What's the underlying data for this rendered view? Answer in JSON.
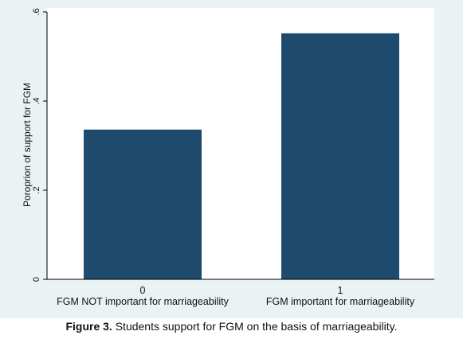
{
  "colors": {
    "bar": "#1e4a6e",
    "plot_background": "#ffffff",
    "outer_background": "#eaf2f3",
    "axis": "#000000"
  },
  "caption": {
    "label": "Figure 3.",
    "text": " Students support for FGM on the basis of marriageability."
  },
  "chart_data": {
    "type": "bar",
    "categories": [
      "0",
      "1"
    ],
    "category_descriptions": [
      "FGM NOT important for marriageability",
      "FGM important for marriageability"
    ],
    "values": [
      0.336,
      0.552
    ],
    "ylabel": "Poroprion  of support for FGM",
    "xlabel": "",
    "ylim": [
      0,
      0.6
    ],
    "yticks": [
      0,
      0.2,
      0.4,
      0.6
    ],
    "ytick_labels": [
      "0",
      ".2",
      ".4",
      ".6"
    ],
    "grid": false,
    "legend": "none"
  }
}
